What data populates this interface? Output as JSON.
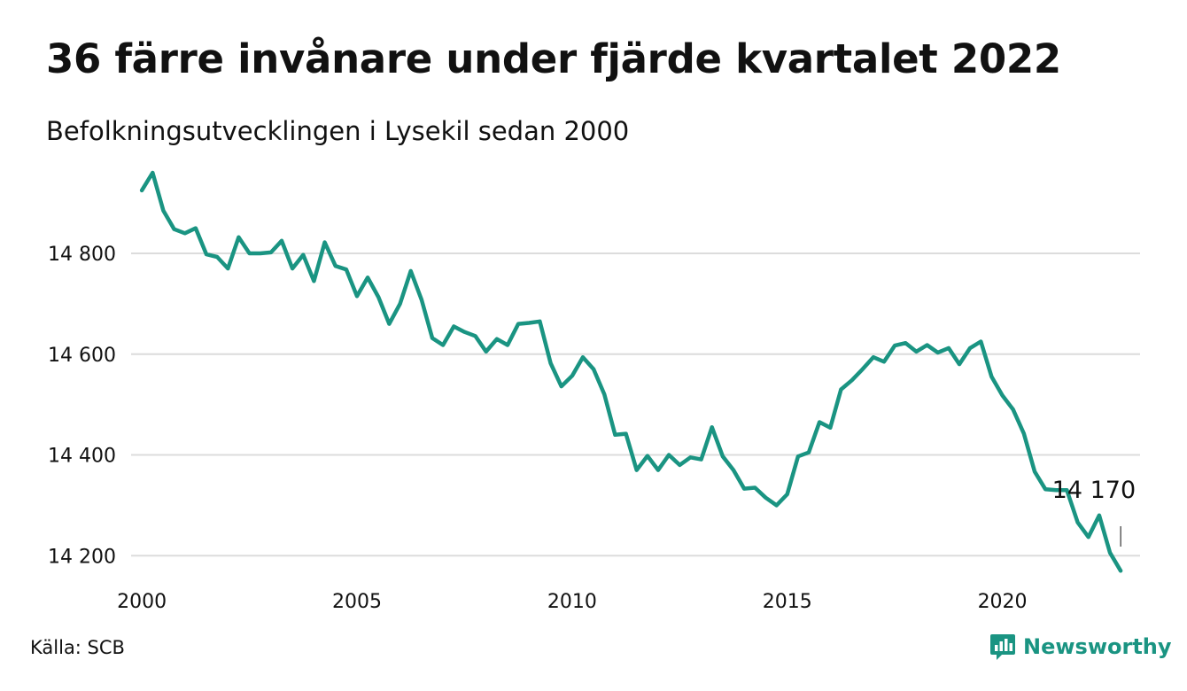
{
  "title": "36 färre invånare under fjärde kvartalet 2022",
  "subtitle": "Befolkningsutvecklingen i Lysekil sedan 2000",
  "source": "Källa: SCB",
  "brand": "Newsworthy",
  "colors": {
    "line": "#1a9482",
    "grid": "#dcdcdc",
    "text": "#111111",
    "brand": "#1a9482"
  },
  "chart_data": {
    "type": "line",
    "x_start_year": 2000,
    "x_step": 0.25,
    "xlim": [
      1999.75,
      2023.2
    ],
    "ylim": [
      14160,
      14960
    ],
    "x_ticks": [
      2000,
      2005,
      2010,
      2015,
      2020
    ],
    "x_tick_labels": [
      "2000",
      "2005",
      "2010",
      "2015",
      "2020"
    ],
    "y_ticks": [
      14200,
      14400,
      14600,
      14800
    ],
    "y_tick_labels": [
      "14 200",
      "14 400",
      "14 600",
      "14 800"
    ],
    "grid": "horizontal",
    "annotation": {
      "label": "14 170",
      "value": 14170
    },
    "values": [
      14925,
      14960,
      14885,
      14848,
      14840,
      14850,
      14798,
      14793,
      14770,
      14832,
      14800,
      14800,
      14802,
      14825,
      14770,
      14797,
      14745,
      14822,
      14775,
      14768,
      14715,
      14752,
      14713,
      14660,
      14700,
      14765,
      14708,
      14632,
      14618,
      14655,
      14644,
      14636,
      14605,
      14630,
      14618,
      14660,
      14662,
      14665,
      14582,
      14536,
      14557,
      14594,
      14570,
      14520,
      14440,
      14442,
      14370,
      14398,
      14370,
      14400,
      14380,
      14395,
      14391,
      14455,
      14397,
      14370,
      14333,
      14335,
      14315,
      14300,
      14322,
      14397,
      14405,
      14465,
      14454,
      14530,
      14548,
      14570,
      14594,
      14585,
      14617,
      14622,
      14605,
      14618,
      14603,
      14612,
      14580,
      14612,
      14625,
      14555,
      14518,
      14490,
      14442,
      14367,
      14332,
      14330,
      14330,
      14266,
      14237,
      14280,
      14206,
      14170
    ]
  }
}
